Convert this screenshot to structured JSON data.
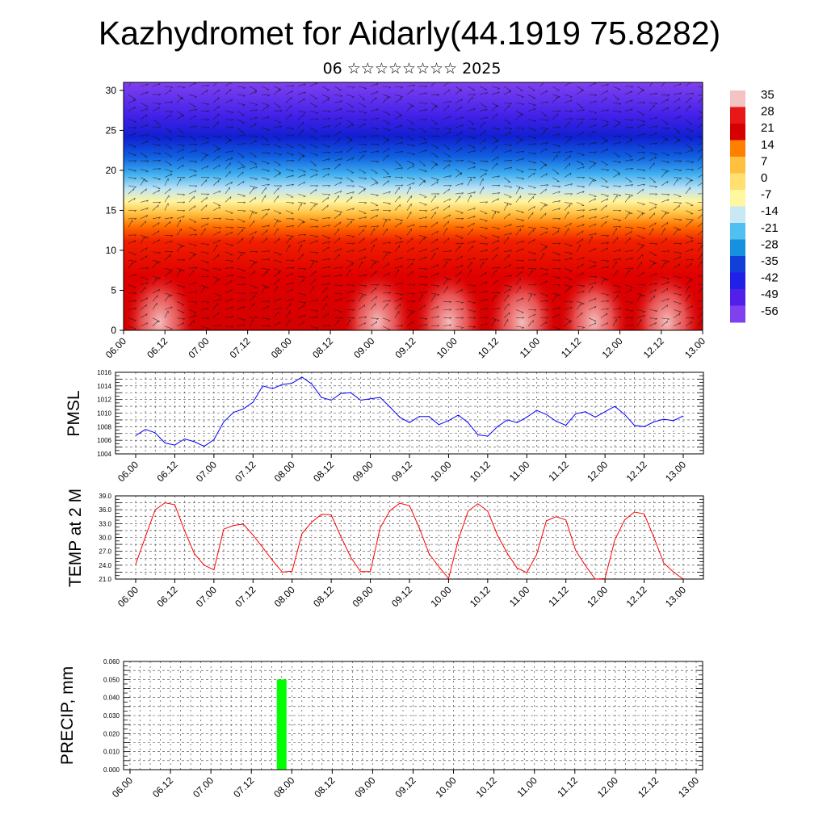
{
  "header": {
    "title": "Kazhydromet for Aidarly(44.1919 75.8282)",
    "subtitle": "06 ☆☆☆☆☆☆☆☆ 2025"
  },
  "chart_data": [
    {
      "type": "heatmap",
      "name": "cross-section",
      "xlabel": "",
      "ylabel": "",
      "yticks": [
        "0",
        "5",
        "10",
        "15",
        "20",
        "25",
        "30"
      ],
      "ylim": [
        0,
        31
      ],
      "xticks": [
        "06.00",
        "06.12",
        "07.00",
        "07.12",
        "08.00",
        "08.12",
        "09.00",
        "09.12",
        "10.00",
        "10.12",
        "11.00",
        "11.12",
        "12.00",
        "12.12",
        "13.00"
      ],
      "colorbar": {
        "labels": [
          "35",
          "28",
          "21",
          "14",
          "7",
          "0",
          "-7",
          "-14",
          "-21",
          "-28",
          "-35",
          "-42",
          "-49",
          "-56"
        ],
        "colors": [
          "#f4c4c4",
          "#e81818",
          "#d60000",
          "#ff8000",
          "#ffc040",
          "#ffe070",
          "#fff8a0",
          "#c8e8f4",
          "#50c0f0",
          "#1890e0",
          "#1040d8",
          "#2020e8",
          "#5020e8",
          "#8040f0"
        ]
      },
      "warm_blobs_x": [
        0.0625,
        0.438,
        0.562,
        0.688,
        0.812,
        0.938
      ],
      "grid": false
    },
    {
      "type": "line",
      "ylabel": "PMSL",
      "ylim": [
        1004,
        1016
      ],
      "yticks": [
        "1004",
        "1006",
        "1008",
        "1010",
        "1012",
        "1014",
        "1016"
      ],
      "xticks": [
        "06.00",
        "06.12",
        "07.00",
        "07.12",
        "08.00",
        "08.12",
        "09.00",
        "09.12",
        "10.00",
        "10.12",
        "11.00",
        "11.12",
        "12.00",
        "12.12",
        "13.00"
      ],
      "x": [
        0,
        3,
        6,
        9,
        12,
        15,
        18,
        21,
        24,
        27,
        30,
        33,
        36,
        39,
        42,
        45,
        48,
        51,
        54,
        57,
        60,
        63,
        66,
        69,
        72,
        75,
        78,
        81,
        84,
        87,
        90,
        93,
        96,
        99,
        102,
        105,
        108,
        111,
        114,
        117,
        120,
        123,
        126,
        129,
        132,
        135,
        138,
        141,
        144,
        147,
        150,
        153,
        156,
        159,
        162,
        165,
        168
      ],
      "series": [
        {
          "color": "#0000ff",
          "values": [
            1006.7,
            1007.6,
            1007.1,
            1005.6,
            1005.3,
            1006.2,
            1005.8,
            1005.1,
            1006.1,
            1008.7,
            1010.1,
            1010.6,
            1011.6,
            1014.0,
            1013.6,
            1014.2,
            1014.4,
            1015.3,
            1014.3,
            1012.3,
            1011.9,
            1012.9,
            1013.0,
            1011.9,
            1012.1,
            1012.3,
            1010.9,
            1009.4,
            1008.6,
            1009.5,
            1009.5,
            1008.3,
            1008.9,
            1009.7,
            1008.6,
            1006.8,
            1006.6,
            1008.0,
            1009.0,
            1008.6,
            1009.4,
            1010.4,
            1009.8,
            1008.8,
            1008.2,
            1009.9,
            1010.2,
            1009.4,
            1010.2,
            1011.0,
            1009.8,
            1008.2,
            1008.0,
            1008.7,
            1009.1,
            1008.9,
            1009.6
          ]
        }
      ],
      "grid": true
    },
    {
      "type": "line",
      "ylabel": "TEMP at 2 M",
      "ylim": [
        21.0,
        39.0
      ],
      "yticks": [
        "21.0",
        "24.0",
        "27.0",
        "30.0",
        "33.0",
        "36.0",
        "39.0"
      ],
      "xticks": [
        "06.00",
        "06.12",
        "07.00",
        "07.12",
        "08.00",
        "08.12",
        "09.00",
        "09.12",
        "10.00",
        "10.12",
        "11.00",
        "11.12",
        "12.00",
        "12.12",
        "13.00"
      ],
      "x": [
        0,
        3,
        6,
        9,
        12,
        15,
        18,
        21,
        24,
        27,
        30,
        33,
        36,
        39,
        42,
        45,
        48,
        51,
        54,
        57,
        60,
        63,
        66,
        69,
        72,
        75,
        78,
        81,
        84,
        87,
        90,
        93,
        96,
        99,
        102,
        105,
        108,
        111,
        114,
        117,
        120,
        123,
        126,
        129,
        132,
        135,
        138,
        141,
        144,
        147,
        150,
        153,
        156,
        159,
        162,
        165,
        168
      ],
      "series": [
        {
          "color": "#ff0000",
          "values": [
            24.2,
            30.2,
            36.0,
            37.5,
            37.1,
            31.5,
            26.5,
            24.0,
            23.0,
            31.8,
            32.6,
            32.9,
            30.5,
            27.8,
            25.0,
            22.5,
            22.7,
            30.8,
            33.3,
            35.0,
            34.9,
            30.1,
            25.7,
            22.6,
            22.6,
            32.1,
            35.8,
            37.4,
            36.9,
            32.1,
            26.5,
            23.7,
            21.1,
            29.5,
            35.7,
            37.3,
            35.7,
            30.5,
            26.6,
            23.4,
            22.4,
            26.3,
            33.6,
            34.5,
            33.8,
            27.2,
            23.9,
            21.0,
            21.1,
            29.5,
            33.8,
            35.5,
            35.1,
            30.0,
            24.5,
            22.5,
            21.0
          ]
        }
      ],
      "grid": true
    },
    {
      "type": "bar",
      "ylabel": "PRECIP, mm",
      "ylim": [
        0.0,
        0.06
      ],
      "yticks": [
        "0.000",
        "0.010",
        "0.020",
        "0.030",
        "0.040",
        "0.050",
        "0.060"
      ],
      "xticks": [
        "06.00",
        "06.12",
        "07.00",
        "07.12",
        "08.00",
        "08.12",
        "09.00",
        "09.12",
        "10.00",
        "10.12",
        "11.00",
        "11.12",
        "12.00",
        "12.12",
        "13.00"
      ],
      "bars": [
        {
          "x": 45,
          "value": 0.05,
          "color": "#00ff00"
        }
      ],
      "grid": true
    }
  ]
}
